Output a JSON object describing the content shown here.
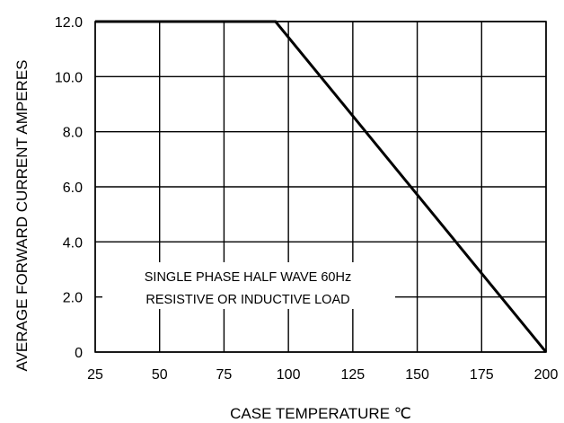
{
  "chart_data": {
    "type": "line",
    "title": "",
    "xlabel": "CASE TEMPERATURE  ℃",
    "ylabel": "AVERAGE FORWARD CURRENT AMPERES",
    "xlim": [
      25,
      200
    ],
    "ylim": [
      0,
      12.0
    ],
    "x_ticks": [
      25,
      50,
      75,
      100,
      125,
      150,
      175,
      200
    ],
    "x_tick_labels": [
      "25",
      "50",
      "75",
      "100",
      "125",
      "150",
      "175",
      "200"
    ],
    "y_ticks": [
      0,
      2.0,
      4.0,
      6.0,
      8.0,
      10.0,
      12.0
    ],
    "y_tick_labels": [
      "0",
      "2.0",
      "4.0",
      "6.0",
      "8.0",
      "10.0",
      "12.0"
    ],
    "grid": true,
    "series": [
      {
        "x": [
          25,
          95,
          200
        ],
        "y": [
          12.0,
          12.0,
          0
        ]
      }
    ],
    "annotation": {
      "line1": "SINGLE PHASE HALF WAVE 60Hz",
      "line2": "RESISTIVE OR  INDUCTIVE LOAD"
    },
    "line_color": "#000000"
  }
}
